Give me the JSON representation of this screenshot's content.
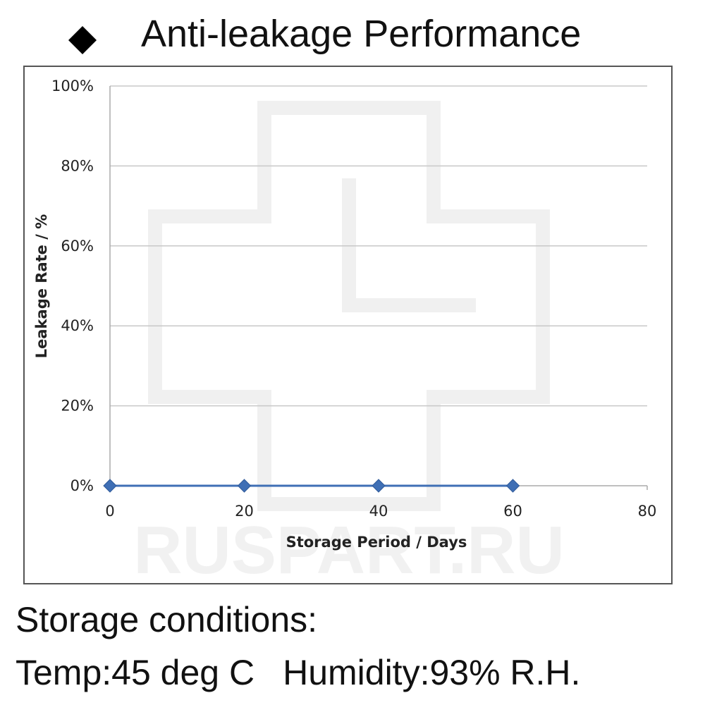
{
  "heading": {
    "bullet_icon": "black-diamond-icon",
    "title": "Anti-leakage Performance"
  },
  "footer": {
    "line1": "Storage conditions:",
    "temp": "Temp:45 deg C",
    "humidity": "Humidity:93% R.H."
  },
  "watermark": {
    "text": "RUSPART.RU",
    "logo_icon": "cross-logo-icon"
  },
  "chart_data": {
    "type": "line",
    "title": "",
    "xlabel": "Storage Period / Days",
    "ylabel": "Leakage Rate / %",
    "xlim": [
      0,
      80
    ],
    "ylim": [
      0,
      100
    ],
    "x_ticks": [
      0,
      20,
      40,
      60,
      80
    ],
    "y_ticks": [
      0,
      20,
      40,
      60,
      80,
      100
    ],
    "y_tick_suffix": "%",
    "grid": true,
    "legend": "none",
    "series": [
      {
        "x": [
          0,
          20,
          40,
          60
        ],
        "values": [
          0,
          0,
          0,
          0
        ],
        "color": "#3f6fb5",
        "marker": "diamond"
      }
    ]
  }
}
